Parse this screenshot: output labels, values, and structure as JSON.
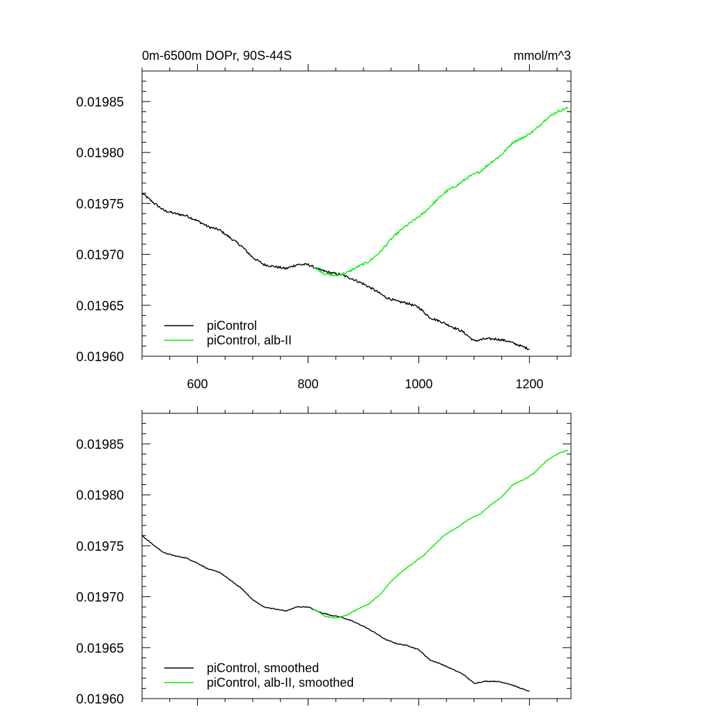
{
  "chart_data": [
    {
      "type": "line",
      "title_left": "0m-6500m DOPr, 90S-44S",
      "title_right": "mmol/m^3",
      "xlabel": "",
      "ylabel": "",
      "xlim": [
        500,
        1275
      ],
      "ylim": [
        0.0196,
        0.01988
      ],
      "xticks": [
        600,
        800,
        1000,
        1200
      ],
      "xtick_labels": [
        "600",
        "800",
        "1000",
        "1200"
      ],
      "yticks": [
        0.0196,
        0.01965,
        0.0197,
        0.01975,
        0.0198,
        0.01985
      ],
      "ytick_labels": [
        "0.01960",
        "0.01965",
        "0.01970",
        "0.01975",
        "0.01980",
        "0.01985"
      ],
      "legend_position": "bottom-left",
      "series": [
        {
          "name": "piControl",
          "color": "#000000",
          "x": [
            500,
            520,
            540,
            560,
            580,
            600,
            620,
            640,
            660,
            680,
            700,
            720,
            740,
            760,
            780,
            800,
            820,
            840,
            860,
            880,
            900,
            920,
            940,
            960,
            980,
            1000,
            1020,
            1040,
            1060,
            1080,
            1100,
            1120,
            1140,
            1160,
            1180,
            1200
          ],
          "y": [
            0.01976,
            0.019751,
            0.019743,
            0.01974,
            0.019738,
            0.019733,
            0.019727,
            0.019724,
            0.019716,
            0.019708,
            0.019697,
            0.01969,
            0.019688,
            0.019686,
            0.01969,
            0.01969,
            0.019685,
            0.019682,
            0.01968,
            0.019676,
            0.019671,
            0.019665,
            0.019658,
            0.019654,
            0.019652,
            0.019648,
            0.019638,
            0.019634,
            0.019629,
            0.019624,
            0.019615,
            0.019617,
            0.019617,
            0.019615,
            0.019611,
            0.019607
          ],
          "noise": 1.2e-06
        },
        {
          "name": "piControl, alb-II",
          "color": "#00ee00",
          "x": [
            810,
            830,
            850,
            870,
            890,
            910,
            930,
            950,
            970,
            990,
            1010,
            1030,
            1050,
            1070,
            1090,
            1110,
            1130,
            1150,
            1170,
            1190,
            1210,
            1230,
            1250,
            1270
          ],
          "y": [
            0.019688,
            0.019681,
            0.019679,
            0.019682,
            0.019688,
            0.019693,
            0.019702,
            0.019715,
            0.019725,
            0.019733,
            0.019741,
            0.019752,
            0.019762,
            0.019768,
            0.019776,
            0.019781,
            0.01979,
            0.019798,
            0.01981,
            0.019815,
            0.019822,
            0.019833,
            0.01984,
            0.019844
          ],
          "noise": 1.2e-06
        }
      ]
    },
    {
      "type": "line",
      "title_left": "",
      "title_right": "",
      "xlabel": "",
      "ylabel": "",
      "xlim": [
        500,
        1275
      ],
      "ylim": [
        0.0196,
        0.01988
      ],
      "xticks": [
        600,
        800,
        1000,
        1200
      ],
      "xtick_labels": [],
      "yticks": [
        0.0196,
        0.01965,
        0.0197,
        0.01975,
        0.0198,
        0.01985
      ],
      "ytick_labels": [
        "0.01960",
        "0.01965",
        "0.01970",
        "0.01975",
        "0.01980",
        "0.01985"
      ],
      "legend_position": "bottom-left",
      "series": [
        {
          "name": "piControl, smoothed",
          "color": "#000000",
          "x": [
            500,
            520,
            540,
            560,
            580,
            600,
            620,
            640,
            660,
            680,
            700,
            720,
            740,
            760,
            780,
            800,
            820,
            840,
            860,
            880,
            900,
            920,
            940,
            960,
            980,
            1000,
            1020,
            1040,
            1060,
            1080,
            1100,
            1120,
            1140,
            1160,
            1180,
            1200
          ],
          "y": [
            0.01976,
            0.019751,
            0.019743,
            0.01974,
            0.019738,
            0.019733,
            0.019727,
            0.019724,
            0.019716,
            0.019708,
            0.019697,
            0.01969,
            0.019688,
            0.019686,
            0.01969,
            0.01969,
            0.019685,
            0.019682,
            0.01968,
            0.019676,
            0.019671,
            0.019665,
            0.019658,
            0.019654,
            0.019652,
            0.019648,
            0.019638,
            0.019634,
            0.019629,
            0.019624,
            0.019615,
            0.019617,
            0.019617,
            0.019615,
            0.019611,
            0.019607
          ],
          "noise": 4e-07
        },
        {
          "name": "piControl, alb-II, smoothed",
          "color": "#00ee00",
          "x": [
            810,
            830,
            850,
            870,
            890,
            910,
            930,
            950,
            970,
            990,
            1010,
            1030,
            1050,
            1070,
            1090,
            1110,
            1130,
            1150,
            1170,
            1190,
            1210,
            1230,
            1250,
            1270
          ],
          "y": [
            0.019688,
            0.019681,
            0.019679,
            0.019682,
            0.019688,
            0.019693,
            0.019702,
            0.019715,
            0.019725,
            0.019733,
            0.019741,
            0.019752,
            0.019762,
            0.019768,
            0.019776,
            0.019781,
            0.01979,
            0.019798,
            0.01981,
            0.019815,
            0.019822,
            0.019833,
            0.01984,
            0.019844
          ],
          "noise": 4e-07
        }
      ]
    }
  ]
}
